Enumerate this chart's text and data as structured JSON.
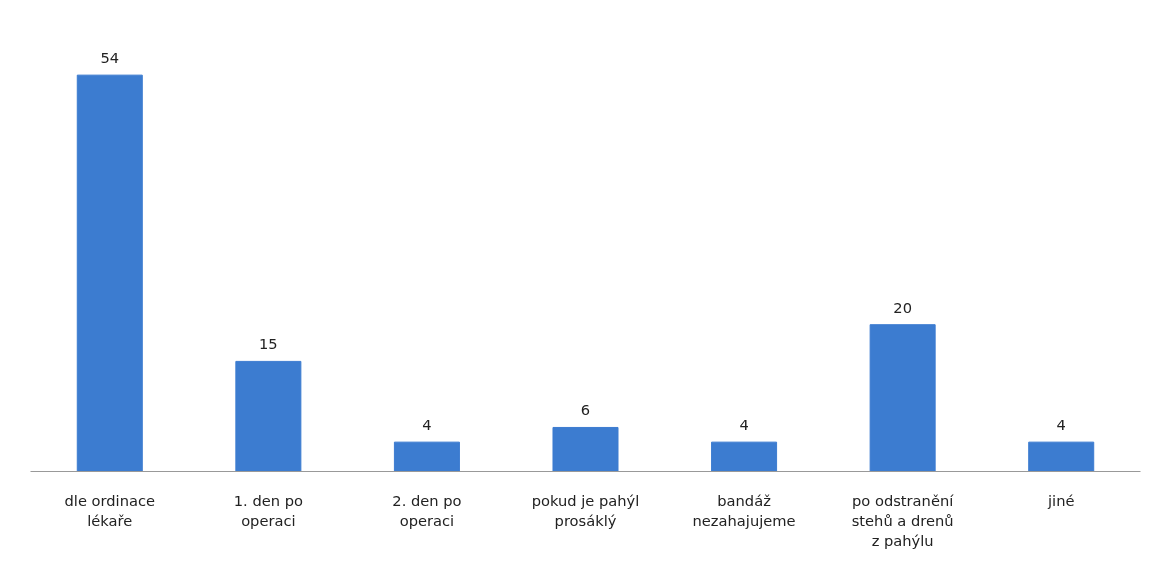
{
  "chart_data": {
    "type": "bar",
    "categories": [
      "dle ordinace\nlékaře",
      "1. den po\noperaci",
      "2. den po\noperaci",
      "pokud je pahýl\nprosáklý",
      "bandáž\nnezahajujeme",
      "po odstranění\nstehů a drenů\nz pahýlu",
      "jiné"
    ],
    "values": [
      54,
      15,
      4,
      6,
      4,
      20,
      4
    ],
    "color": "#3c7cd0",
    "data_labels": true
  }
}
